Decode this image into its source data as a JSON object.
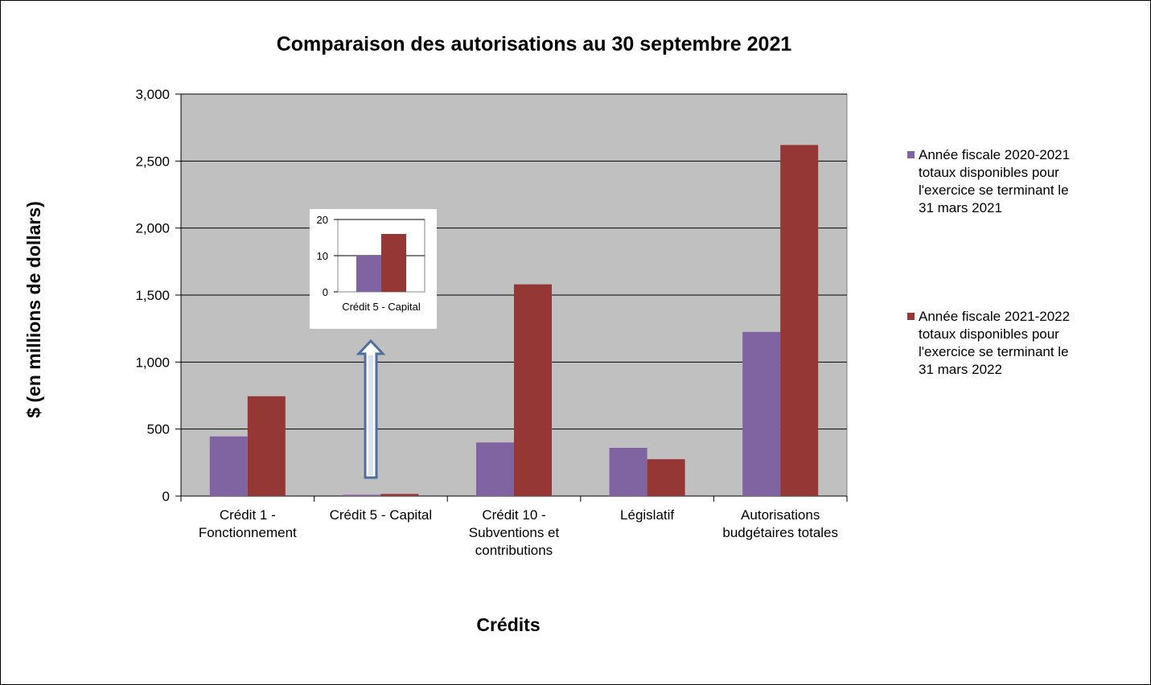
{
  "chart_data": {
    "type": "bar",
    "title": "Comparaison des autorisations au 30 septembre 2021",
    "xlabel": "Crédits",
    "ylabel": "$ (en millions de dollars)",
    "ylim": [
      0,
      3000
    ],
    "yticks": [
      0,
      500,
      1000,
      1500,
      2000,
      2500,
      3000
    ],
    "ytick_labels": [
      "0",
      "500",
      "1,000",
      "1,500",
      "2,000",
      "2,500",
      "3,000"
    ],
    "grid": true,
    "legend_position": "right",
    "categories": [
      [
        "Crédit 1 -",
        "Fonctionnement"
      ],
      [
        "Crédit 5 - Capital"
      ],
      [
        "Crédit 10 -",
        "Subventions et",
        "contributions"
      ],
      [
        "Législatif"
      ],
      [
        "Autorisations",
        "budgétaires totales"
      ]
    ],
    "series": [
      {
        "name": "Année fiscale 2020-2021 totaux disponibles pour l'exercice se terminant le 31 mars 2021",
        "name_lines": [
          "Année fiscale 2020-2021",
          "totaux disponibles pour",
          "l'exercice se terminant le",
          "31 mars 2021"
        ],
        "color": "#8064a2",
        "values": [
          445,
          10,
          400,
          360,
          1225
        ]
      },
      {
        "name": "Année fiscale 2021-2022 totaux disponibles pour l'exercice se terminant le 31 mars 2022",
        "name_lines": [
          "Année fiscale 2021-2022",
          "totaux disponibles pour",
          "l'exercice se terminant le",
          "31 mars 2022"
        ],
        "color": "#953735",
        "values": [
          745,
          16,
          1580,
          275,
          2620
        ]
      }
    ],
    "plot_background": "#c0c0c0",
    "inset": {
      "category": "Crédit 5 - Capital",
      "ylim": [
        0,
        20
      ],
      "yticks": [
        0,
        10,
        20
      ],
      "ytick_labels": [
        "0",
        "10",
        "20"
      ],
      "values": [
        10,
        16
      ],
      "arrow_color": "#4f6f9f"
    }
  }
}
